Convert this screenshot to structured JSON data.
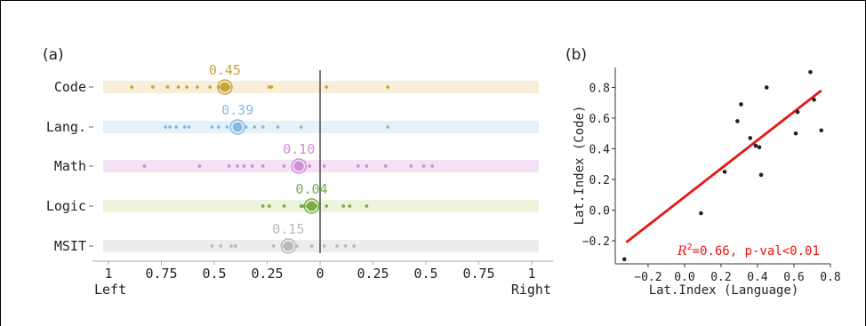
{
  "chart_data": [
    {
      "panel_label": "(a)",
      "type": "scatter",
      "categories": [
        "Code",
        "Lang.",
        "Math",
        "Logic",
        "MSIT"
      ],
      "x_ticks": [
        {
          "value": -1,
          "label": "1"
        },
        {
          "value": -0.75,
          "label": "0.75"
        },
        {
          "value": -0.5,
          "label": "0.5"
        },
        {
          "value": -0.25,
          "label": "0.25"
        },
        {
          "value": 0,
          "label": "0"
        },
        {
          "value": 0.25,
          "label": "0.25"
        },
        {
          "value": 0.5,
          "label": "0.5"
        },
        {
          "value": 0.75,
          "label": "0.75"
        },
        {
          "value": 1,
          "label": "1"
        }
      ],
      "xlim": [
        -1,
        1
      ],
      "x_end_labels": {
        "left": "Left",
        "right": "Right"
      },
      "rows": [
        {
          "name": "Code",
          "color": "#c9a43a",
          "band": "#f7efd9",
          "mean_label": "0.45",
          "mean": -0.45,
          "points": [
            -0.89,
            -0.79,
            -0.72,
            -0.67,
            -0.63,
            -0.58,
            -0.52,
            -0.48,
            -0.43,
            -0.24,
            -0.23,
            0.03,
            0.32
          ]
        },
        {
          "name": "Lang.",
          "color": "#8ab9e2",
          "band": "#e6f1fa",
          "mean_label": "0.39",
          "mean": -0.39,
          "points": [
            -0.73,
            -0.71,
            -0.68,
            -0.64,
            -0.62,
            -0.51,
            -0.48,
            -0.44,
            -0.39,
            -0.35,
            -0.31,
            -0.27,
            -0.2,
            -0.09,
            0.32
          ]
        },
        {
          "name": "Math",
          "color": "#cf8fd3",
          "band": "#f5e3f5",
          "mean_label": "0.10",
          "mean": -0.1,
          "points": [
            -0.83,
            -0.57,
            -0.43,
            -0.39,
            -0.36,
            -0.32,
            -0.27,
            -0.17,
            -0.09,
            -0.05,
            0.02,
            0.18,
            0.22,
            0.31,
            0.43,
            0.49,
            0.53
          ]
        },
        {
          "name": "Logic",
          "color": "#7aaa4a",
          "band": "#ecf5dc",
          "mean_label": "0.04",
          "mean": -0.04,
          "points": [
            -0.27,
            -0.24,
            -0.17,
            -0.09,
            -0.08,
            -0.06,
            -0.02,
            0.03,
            0.11,
            0.14,
            0.22
          ]
        },
        {
          "name": "MSIT",
          "color": "#b9b9b9",
          "band": "#ededed",
          "mean_label": "0.15",
          "mean": -0.15,
          "points": [
            -0.51,
            -0.47,
            -0.42,
            -0.4,
            -0.22,
            -0.17,
            -0.11,
            -0.04,
            0.02,
            0.08,
            0.12,
            0.16
          ]
        }
      ]
    },
    {
      "panel_label": "(b)",
      "type": "scatter",
      "xlabel": "Lat.Index (Language)",
      "ylabel": "Lat.Index (Code)",
      "xlim": [
        -0.38,
        0.8
      ],
      "ylim": [
        -0.35,
        0.93
      ],
      "x_ticks": [
        {
          "value": -0.2,
          "label": "−0.2"
        },
        {
          "value": 0,
          "label": "0.0"
        },
        {
          "value": 0.2,
          "label": "0.2"
        },
        {
          "value": 0.4,
          "label": "0.4"
        },
        {
          "value": 0.6,
          "label": "0.6"
        },
        {
          "value": 0.8,
          "label": "0.8"
        }
      ],
      "y_ticks": [
        {
          "value": -0.2,
          "label": "−0.2"
        },
        {
          "value": 0,
          "label": "0.0"
        },
        {
          "value": 0.2,
          "label": "0.2"
        },
        {
          "value": 0.4,
          "label": "0.4"
        },
        {
          "value": 0.6,
          "label": "0.6"
        },
        {
          "value": 0.8,
          "label": "0.8"
        }
      ],
      "points": [
        {
          "x": -0.33,
          "y": -0.32
        },
        {
          "x": 0.09,
          "y": -0.02
        },
        {
          "x": 0.22,
          "y": 0.25
        },
        {
          "x": 0.29,
          "y": 0.58
        },
        {
          "x": 0.31,
          "y": 0.69
        },
        {
          "x": 0.36,
          "y": 0.47
        },
        {
          "x": 0.39,
          "y": 0.42
        },
        {
          "x": 0.41,
          "y": 0.41
        },
        {
          "x": 0.42,
          "y": 0.23
        },
        {
          "x": 0.45,
          "y": 0.8
        },
        {
          "x": 0.61,
          "y": 0.5
        },
        {
          "x": 0.62,
          "y": 0.64
        },
        {
          "x": 0.69,
          "y": 0.9
        },
        {
          "x": 0.71,
          "y": 0.72
        },
        {
          "x": 0.75,
          "y": 0.52
        }
      ],
      "fit_line": {
        "x": [
          -0.32,
          0.75
        ],
        "y": [
          -0.21,
          0.78
        ],
        "color": "#e8150f"
      },
      "annotation": {
        "r2_symbol": "R",
        "r2_exp": "2",
        "text": "=0.66, p-val<0.01",
        "color": "#e8150f"
      }
    }
  ]
}
